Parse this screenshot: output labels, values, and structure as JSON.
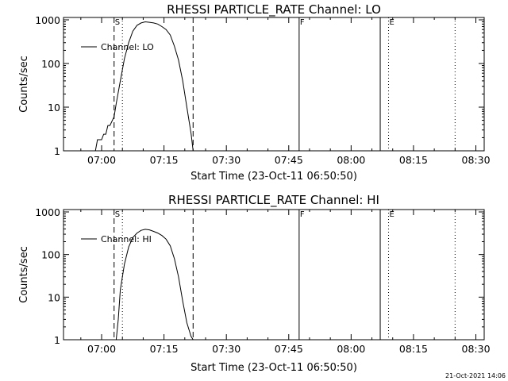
{
  "chart_data": [
    {
      "type": "line",
      "title": "RHESSI PARTICLE_RATE Channel: LO",
      "xlabel": "Start Time (23-Oct-11 06:50:50)",
      "ylabel": "Counts/sec",
      "yscale": "log",
      "ylim": [
        1,
        1000
      ],
      "xlim": [
        "06:50:50",
        "08:32:00"
      ],
      "x_ticks": [
        "07:00",
        "07:15",
        "07:30",
        "07:45",
        "08:00",
        "08:15",
        "08:30"
      ],
      "y_ticks": [
        "1",
        "10",
        "100",
        "1000"
      ],
      "legend": {
        "position": "top-left",
        "entries": [
          "Channel: LO"
        ]
      },
      "markers": [
        {
          "label": "S",
          "time": "07:03:00",
          "style": "dashed"
        },
        {
          "label": "",
          "time": "07:05:00",
          "style": "dotted"
        },
        {
          "label": "",
          "time": "07:22:00",
          "style": "dashed"
        },
        {
          "label": "F",
          "time": "07:47:30",
          "style": "solid"
        },
        {
          "label": "",
          "time": "08:07:00",
          "style": "solid"
        },
        {
          "label": "E",
          "time": "08:09:00",
          "style": "dotted"
        },
        {
          "label": "",
          "time": "08:25:00",
          "style": "dotted"
        }
      ],
      "series": [
        {
          "name": "Channel: LO",
          "x": [
            "06:58:30",
            "06:59:00",
            "07:00:00",
            "07:00:30",
            "07:01:00",
            "07:01:30",
            "07:02:00",
            "07:03:00",
            "07:03:30",
            "07:04:30",
            "07:05:30",
            "07:06:30",
            "07:07:30",
            "07:08:30",
            "07:09:30",
            "07:10:30",
            "07:11:30",
            "07:12:30",
            "07:13:30",
            "07:14:30",
            "07:15:30",
            "07:16:30",
            "07:17:30",
            "07:18:30",
            "07:19:30",
            "07:20:30",
            "07:21:30",
            "07:22:00"
          ],
          "values": [
            1,
            1.8,
            1.8,
            2.4,
            2.4,
            3.8,
            3.8,
            6,
            12,
            40,
            130,
            300,
            550,
            750,
            850,
            900,
            880,
            850,
            800,
            700,
            600,
            450,
            250,
            120,
            40,
            10,
            2.5,
            1
          ]
        }
      ]
    },
    {
      "type": "line",
      "title": "RHESSI PARTICLE_RATE Channel: HI",
      "xlabel": "Start Time (23-Oct-11 06:50:50)",
      "ylabel": "Counts/sec",
      "yscale": "log",
      "ylim": [
        1,
        1000
      ],
      "xlim": [
        "06:50:50",
        "08:32:00"
      ],
      "x_ticks": [
        "07:00",
        "07:15",
        "07:30",
        "07:45",
        "08:00",
        "08:15",
        "08:30"
      ],
      "y_ticks": [
        "1",
        "10",
        "100",
        "1000"
      ],
      "legend": {
        "position": "top-left",
        "entries": [
          "Channel: HI"
        ]
      },
      "markers": [
        {
          "label": "S",
          "time": "07:03:00",
          "style": "dashed"
        },
        {
          "label": "",
          "time": "07:05:00",
          "style": "dotted"
        },
        {
          "label": "",
          "time": "07:22:00",
          "style": "dashed"
        },
        {
          "label": "F",
          "time": "07:47:30",
          "style": "solid"
        },
        {
          "label": "",
          "time": "08:07:00",
          "style": "solid"
        },
        {
          "label": "E",
          "time": "08:09:00",
          "style": "dotted"
        },
        {
          "label": "",
          "time": "08:25:00",
          "style": "dotted"
        }
      ],
      "series": [
        {
          "name": "Channel: HI",
          "x": [
            "07:03:30",
            "07:04:00",
            "07:04:30",
            "07:05:30",
            "07:06:30",
            "07:07:30",
            "07:08:30",
            "07:09:30",
            "07:10:30",
            "07:11:30",
            "07:12:30",
            "07:13:30",
            "07:14:30",
            "07:15:30",
            "07:16:30",
            "07:17:30",
            "07:18:30",
            "07:19:30",
            "07:20:30",
            "07:21:30",
            "07:22:00"
          ],
          "values": [
            1,
            3,
            15,
            60,
            150,
            250,
            320,
            370,
            390,
            380,
            350,
            320,
            280,
            230,
            160,
            80,
            30,
            8,
            2.5,
            1.2,
            1
          ]
        }
      ]
    }
  ],
  "footer": {
    "timestamp": "21-Oct-2021 14:06"
  }
}
